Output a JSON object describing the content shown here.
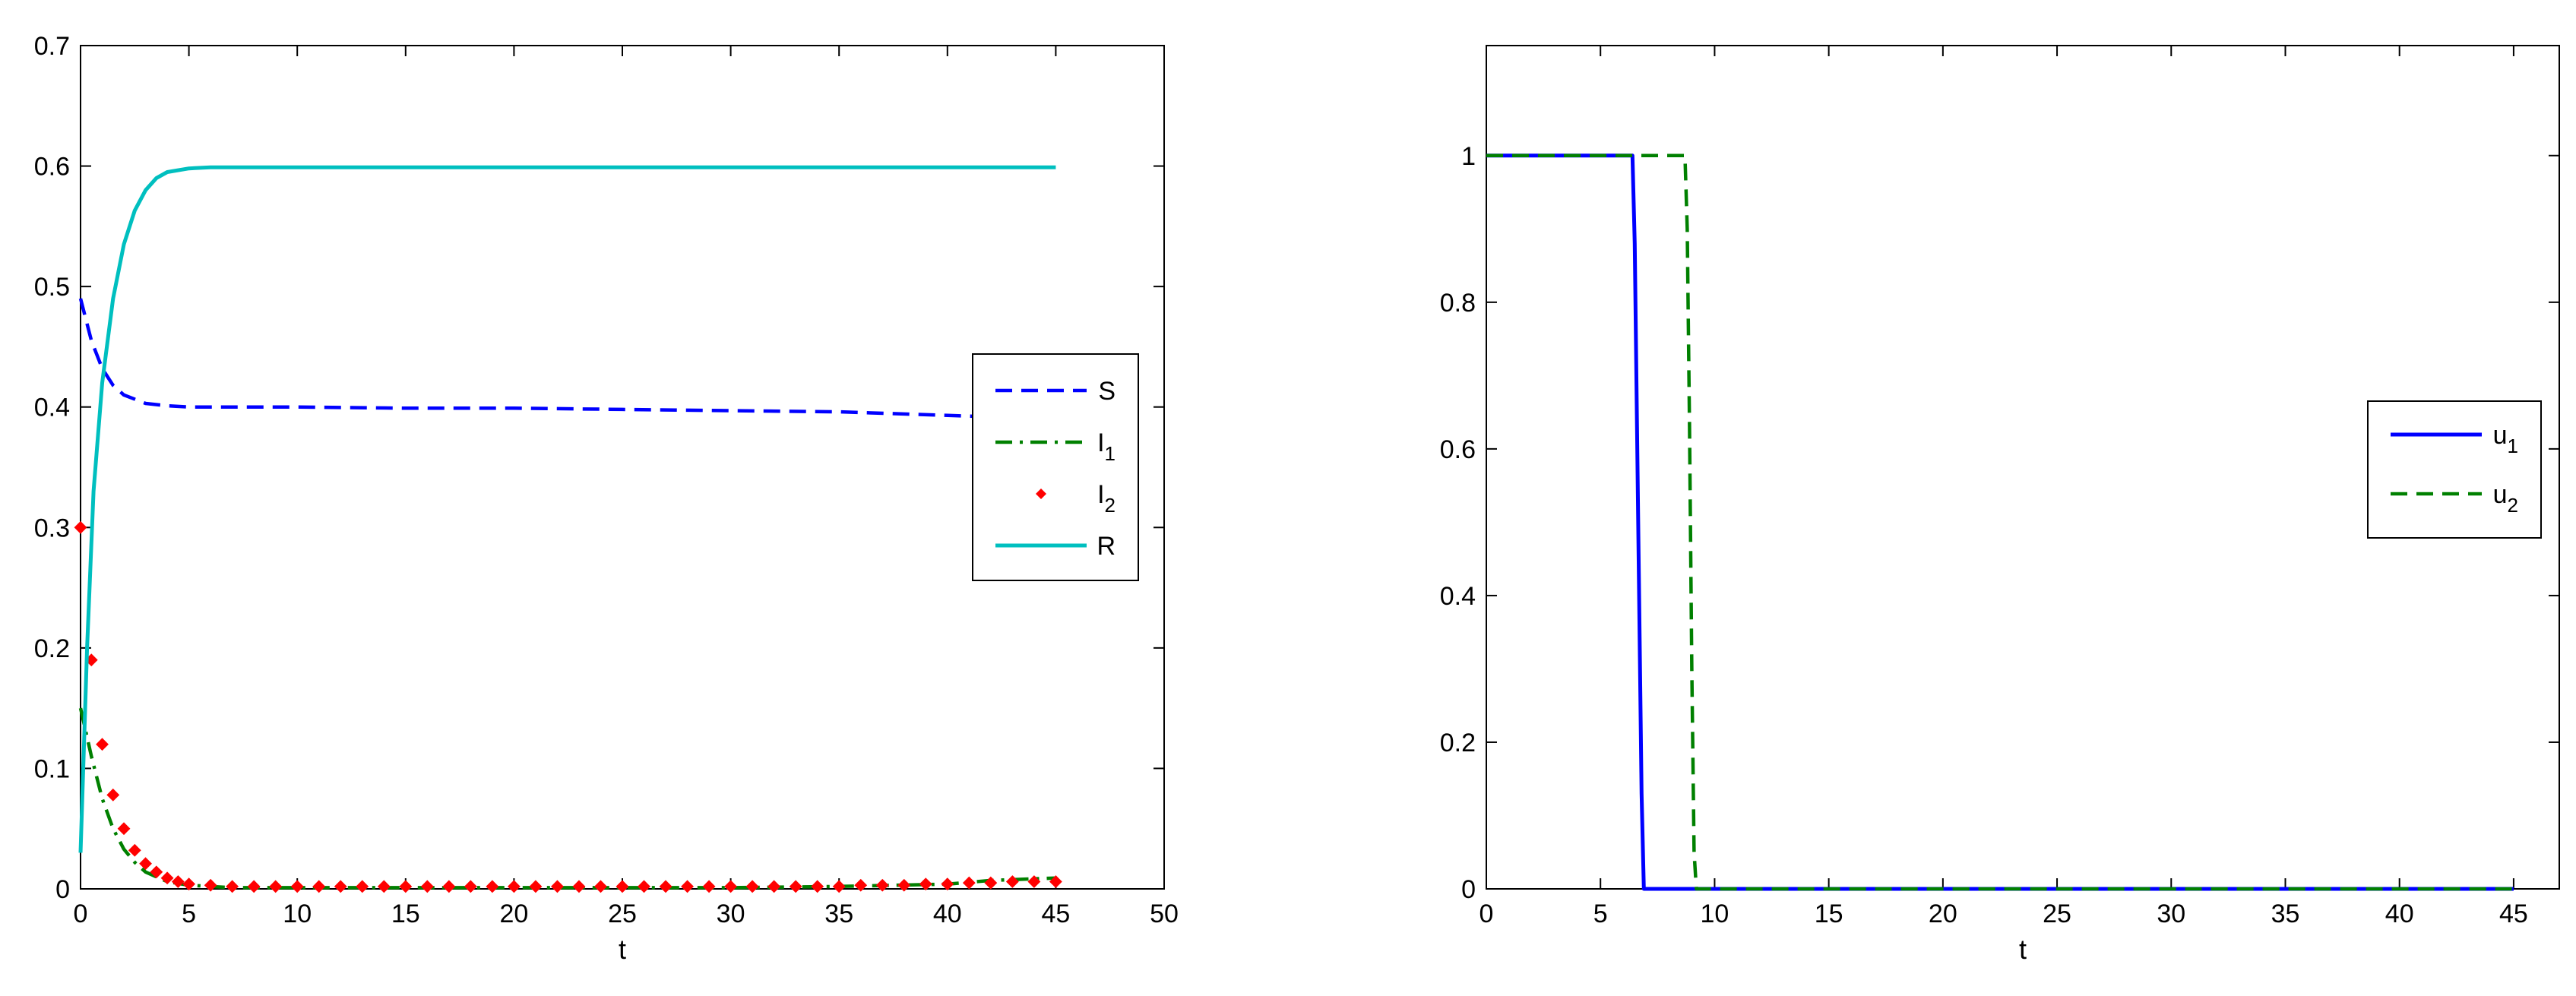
{
  "chart_data": [
    {
      "type": "line",
      "xlabel": "t",
      "ylabel": "",
      "xlim": [
        0,
        50
      ],
      "ylim": [
        0,
        0.7
      ],
      "xticks": [
        "0",
        "5",
        "10",
        "15",
        "20",
        "25",
        "30",
        "35",
        "40",
        "45",
        "50"
      ],
      "yticks": [
        "0",
        "0.1",
        "0.2",
        "0.3",
        "0.4",
        "0.5",
        "0.6",
        "0.7"
      ],
      "grid": false,
      "legend_position": "right",
      "series": [
        {
          "name": "S",
          "legend_main": "S",
          "legend_sub": "",
          "style": "dashed",
          "color": "#0000ff",
          "x": [
            0,
            0.5,
            1,
            1.5,
            2,
            3,
            4,
            5,
            7,
            10,
            15,
            20,
            25,
            30,
            35,
            40,
            45
          ],
          "y": [
            0.49,
            0.455,
            0.432,
            0.418,
            0.41,
            0.403,
            0.401,
            0.4,
            0.4,
            0.4,
            0.399,
            0.399,
            0.398,
            0.397,
            0.396,
            0.393,
            0.39
          ]
        },
        {
          "name": "I1",
          "legend_main": "I",
          "legend_sub": "1",
          "style": "dashdot",
          "color": "#008000",
          "x": [
            0,
            0.5,
            1,
            1.5,
            2,
            2.5,
            3,
            4,
            5,
            7,
            10,
            15,
            20,
            25,
            30,
            35,
            40,
            42,
            45
          ],
          "y": [
            0.15,
            0.11,
            0.075,
            0.05,
            0.033,
            0.022,
            0.014,
            0.006,
            0.003,
            0.001,
            0.001,
            0.001,
            0.001,
            0.001,
            0.001,
            0.002,
            0.004,
            0.007,
            0.009
          ]
        },
        {
          "name": "I2",
          "legend_main": "I",
          "legend_sub": "2",
          "style": "markers",
          "color": "#ff0000",
          "x": [
            0,
            0.5,
            1,
            1.5,
            2,
            2.5,
            3,
            3.5,
            4,
            4.5,
            5,
            6,
            7,
            8,
            9,
            10,
            11,
            12,
            13,
            14,
            15,
            16,
            17,
            18,
            19,
            20,
            21,
            22,
            23,
            24,
            25,
            26,
            27,
            28,
            29,
            30,
            31,
            32,
            33,
            34,
            35,
            36,
            37,
            38,
            39,
            40,
            41,
            42,
            43,
            44,
            45
          ],
          "y": [
            0.3,
            0.19,
            0.12,
            0.078,
            0.05,
            0.032,
            0.021,
            0.014,
            0.009,
            0.006,
            0.004,
            0.003,
            0.002,
            0.002,
            0.002,
            0.002,
            0.002,
            0.002,
            0.002,
            0.002,
            0.002,
            0.002,
            0.002,
            0.002,
            0.002,
            0.002,
            0.002,
            0.002,
            0.002,
            0.002,
            0.002,
            0.002,
            0.002,
            0.002,
            0.002,
            0.002,
            0.002,
            0.002,
            0.002,
            0.002,
            0.002,
            0.003,
            0.003,
            0.003,
            0.004,
            0.004,
            0.005,
            0.005,
            0.006,
            0.006,
            0.006
          ]
        },
        {
          "name": "R",
          "legend_main": "R",
          "legend_sub": "",
          "style": "solid",
          "color": "#00bfbf",
          "x": [
            0,
            0.3,
            0.6,
            1,
            1.5,
            2,
            2.5,
            3,
            3.5,
            4,
            5,
            6,
            10,
            20,
            30,
            40,
            45
          ],
          "y": [
            0.03,
            0.2,
            0.33,
            0.42,
            0.49,
            0.535,
            0.563,
            0.58,
            0.59,
            0.595,
            0.598,
            0.599,
            0.599,
            0.599,
            0.599,
            0.599,
            0.599
          ]
        }
      ]
    },
    {
      "type": "line",
      "xlabel": "t",
      "ylabel": "",
      "xlim": [
        0,
        47
      ],
      "ylim": [
        0,
        1.15
      ],
      "xticks": [
        "0",
        "5",
        "10",
        "15",
        "20",
        "25",
        "30",
        "35",
        "40",
        "45"
      ],
      "yticks": [
        "0",
        "0.2",
        "0.4",
        "0.6",
        "0.8",
        "1"
      ],
      "grid": false,
      "legend_position": "right",
      "series": [
        {
          "name": "u1",
          "legend_main": "u",
          "legend_sub": "1",
          "style": "solid",
          "color": "#0000ff",
          "x": [
            0,
            6.4,
            6.5,
            6.6,
            6.7,
            6.8,
            6.9,
            45
          ],
          "y": [
            1,
            1,
            0.88,
            0.63,
            0.38,
            0.13,
            0,
            0
          ]
        },
        {
          "name": "u2",
          "legend_main": "u",
          "legend_sub": "2",
          "style": "dashed",
          "color": "#008000",
          "x": [
            0,
            8.7,
            8.8,
            8.9,
            9.0,
            9.1,
            9.2,
            45
          ],
          "y": [
            1,
            1,
            0.9,
            0.63,
            0.3,
            0.05,
            0,
            0
          ]
        }
      ]
    }
  ]
}
